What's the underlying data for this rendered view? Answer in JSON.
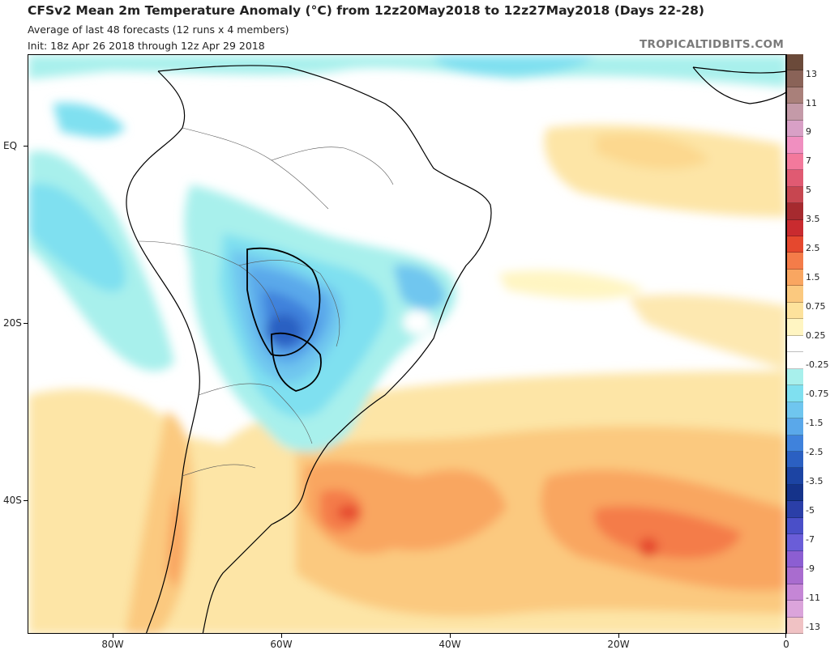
{
  "header": {
    "title": "CFSv2 Mean 2m Temperature Anomaly (°C) from 12z20May2018 to 12z27May2018 (Days 22-28)",
    "subtitle1": "Average of last 48 forecasts (12 runs x 4 members)",
    "subtitle2": "Init: 18z Apr 26 2018 through 12z Apr 29 2018",
    "brand": "TROPICALTIDBITS.COM"
  },
  "axes": {
    "y_labels": [
      "EQ",
      "20S",
      "40S"
    ],
    "x_labels": [
      "80W",
      "60W",
      "40W",
      "20W",
      "0"
    ]
  },
  "colorbar": {
    "labels": [
      "13",
      "11",
      "9",
      "7",
      "5",
      "3.5",
      "2.5",
      "1.5",
      "0.75",
      "0.25",
      "-0.25",
      "-0.75",
      "-1.5",
      "-2.5",
      "-3.5",
      "-5",
      "-7",
      "-9",
      "-11",
      "-13"
    ],
    "colors": [
      "#6b4a3a",
      "#8a6358",
      "#a9807a",
      "#c49aa8",
      "#d8a0c6",
      "#f08fc0",
      "#f3799c",
      "#e05a72",
      "#c74650",
      "#a62a2f",
      "#c92b2f",
      "#e5482e",
      "#f47c49",
      "#f9a661",
      "#fbc97f",
      "#fde29c",
      "#fff5c2",
      "#ffffff",
      "#ffffff",
      "#a8f0ec",
      "#7fe0f0",
      "#6fc6ef",
      "#5aa8ea",
      "#3f82dc",
      "#2b60c2",
      "#1c44a3",
      "#15338a",
      "#2b3fa8",
      "#4a4fc8",
      "#6a5dd8",
      "#8c5ed2",
      "#a96ccf",
      "#c586d6",
      "#dba4db",
      "#f0c2c4"
    ]
  }
}
